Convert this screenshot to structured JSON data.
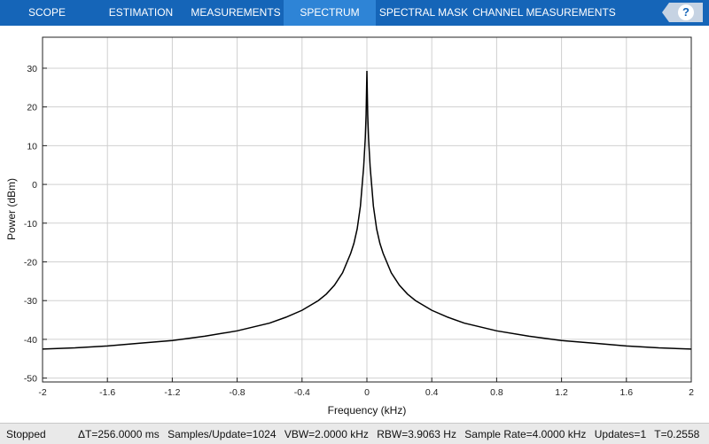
{
  "tabs": [
    {
      "label": "SCOPE",
      "active": false
    },
    {
      "label": "ESTIMATION",
      "active": false
    },
    {
      "label": "MEASUREMENTS",
      "active": false
    },
    {
      "label": "SPECTRUM",
      "active": true
    },
    {
      "label": "SPECTRAL MASK",
      "active": false
    },
    {
      "label": "CHANNEL MEASUREMENTS",
      "active": false
    }
  ],
  "help": {
    "glyph": "?",
    "icon": "question-mark-icon"
  },
  "colors": {
    "toolbar": "#1565b8",
    "active_tab": "#2e84d6",
    "trace": "#000000",
    "grid": "#d0d0d0"
  },
  "chart_data": {
    "type": "line",
    "xlabel": "Frequency (kHz)",
    "ylabel": "Power (dBm)",
    "xlim": [
      -2,
      2
    ],
    "ylim": [
      -51,
      38
    ],
    "x_ticks": [
      -2,
      -1.6,
      -1.2,
      -0.8,
      -0.4,
      0,
      0.4,
      0.8,
      1.2,
      1.6,
      2
    ],
    "x_tick_labels": [
      "-2",
      "-1.6",
      "-1.2",
      "-0.8",
      "-0.4",
      "0",
      "0.4",
      "0.8",
      "1.2",
      "1.6",
      "2"
    ],
    "y_ticks": [
      -50,
      -40,
      -30,
      -20,
      -10,
      0,
      10,
      20,
      30
    ],
    "y_tick_labels": [
      "-50",
      "-40",
      "-30",
      "-20",
      "-10",
      "0",
      "10",
      "20",
      "30"
    ],
    "grid": true,
    "series": [
      {
        "x": [
          -2,
          -1.8,
          -1.6,
          -1.4,
          -1.2,
          -1.0,
          -0.8,
          -0.6,
          -0.5,
          -0.4,
          -0.3,
          -0.25,
          -0.2,
          -0.15,
          -0.1,
          -0.08,
          -0.06,
          -0.04,
          -0.03,
          -0.02,
          -0.01,
          -0.005,
          0,
          0.005,
          0.01,
          0.02,
          0.03,
          0.04,
          0.06,
          0.08,
          0.1,
          0.15,
          0.2,
          0.25,
          0.3,
          0.4,
          0.5,
          0.6,
          0.8,
          1.0,
          1.2,
          1.4,
          1.6,
          1.8,
          2
        ],
        "values": [
          -42.5,
          -42.2,
          -41.7,
          -41.0,
          -40.3,
          -39.2,
          -37.8,
          -35.8,
          -34.3,
          -32.5,
          -30.0,
          -28.3,
          -26.0,
          -22.8,
          -17.8,
          -15.2,
          -11.5,
          -5.6,
          -0.5,
          4.5,
          12.0,
          18.0,
          29.3,
          18.0,
          12.0,
          4.5,
          -0.5,
          -5.6,
          -11.5,
          -15.2,
          -17.8,
          -22.8,
          -26.0,
          -28.3,
          -30.0,
          -32.5,
          -34.3,
          -35.8,
          -37.8,
          -39.2,
          -40.3,
          -41.0,
          -41.7,
          -42.2,
          -42.5
        ]
      }
    ]
  },
  "status": {
    "state": "Stopped",
    "delta_t": "ΔT=256.0000 ms",
    "samples": "Samples/Update=1024",
    "vbw": "VBW=2.0000 kHz",
    "rbw": "RBW=3.9063 Hz",
    "sample_rate": "Sample Rate=4.0000 kHz",
    "updates": "Updates=1",
    "time": "T=0.2558"
  }
}
